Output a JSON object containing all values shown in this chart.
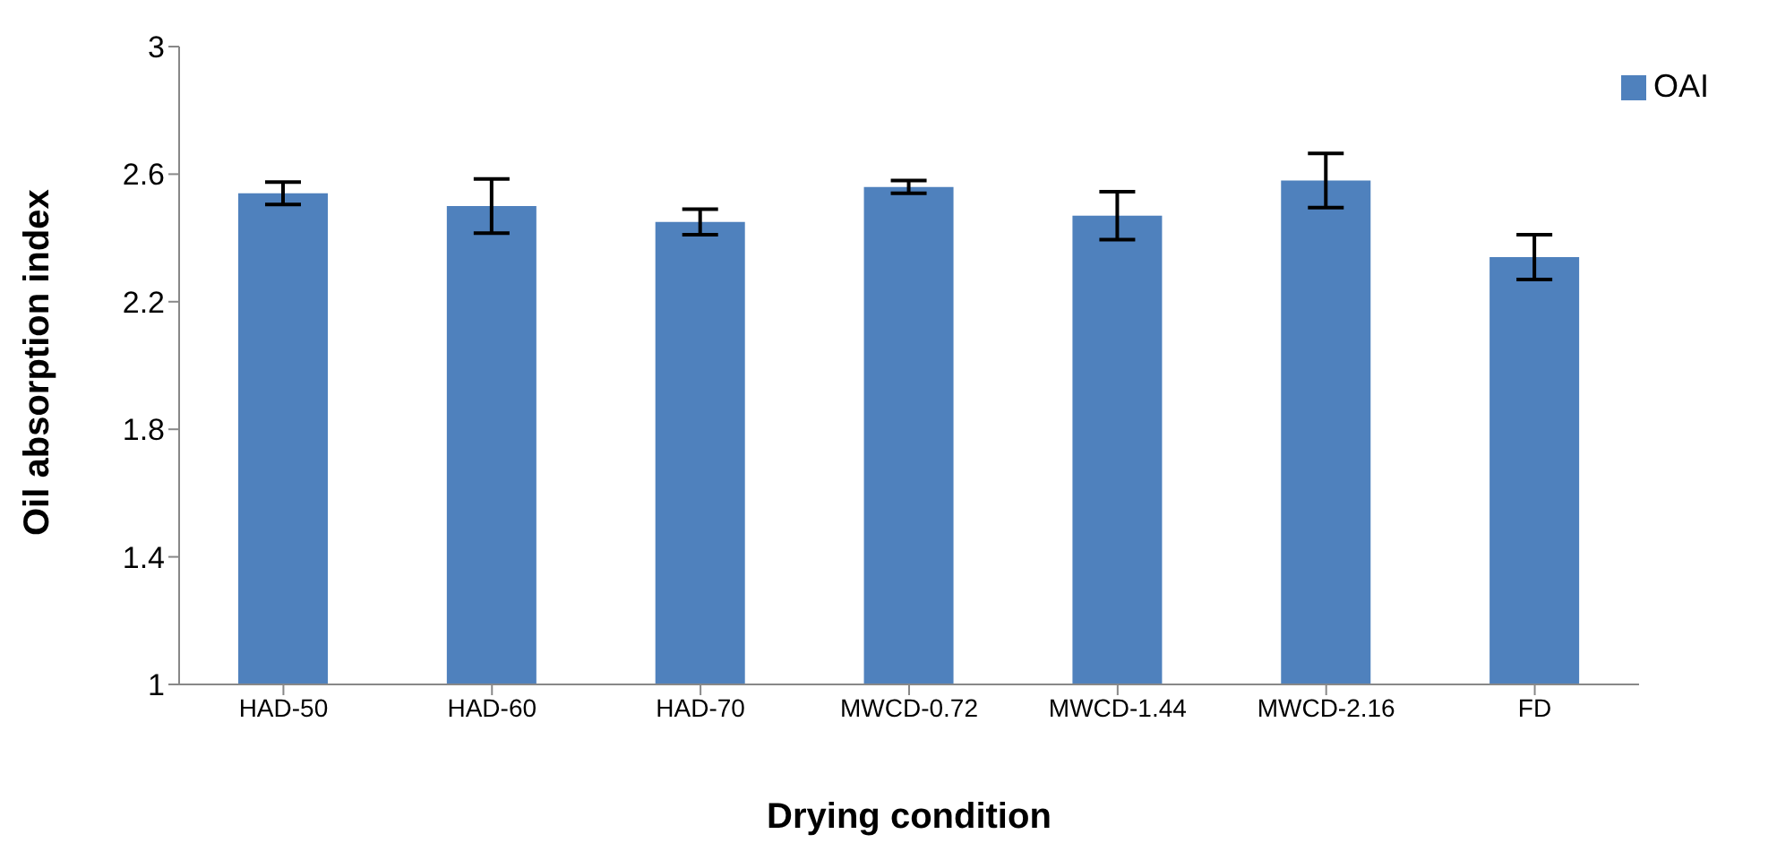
{
  "chart_data": {
    "type": "bar",
    "xlabel": "Drying condition",
    "ylabel": "Oil absorption index",
    "categories": [
      "HAD-50",
      "HAD-60",
      "HAD-70",
      "MWCD-0.72",
      "MWCD-1.44",
      "MWCD-2.16",
      "FD"
    ],
    "series": [
      {
        "name": "OAI",
        "color": "#4f81bd",
        "values": [
          2.54,
          2.5,
          2.45,
          2.56,
          2.47,
          2.58,
          2.34
        ],
        "errors": [
          0.035,
          0.085,
          0.04,
          0.02,
          0.075,
          0.085,
          0.07
        ]
      }
    ],
    "ylim": [
      1,
      3
    ],
    "yticks": [
      1,
      1.4,
      1.8,
      2.2,
      2.6,
      3
    ],
    "grid": false,
    "legend": "top right"
  }
}
